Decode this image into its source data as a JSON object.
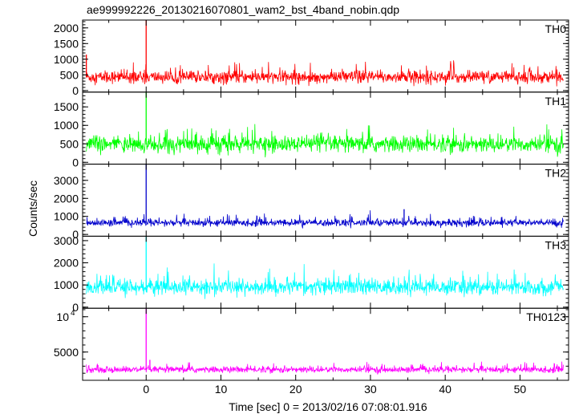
{
  "chart_data": {
    "type": "line",
    "title": "ae999992226_20130216070801_wam2_bst_4band_nobin.qdp",
    "xlabel": "Time [sec] 0 = 2013/02/16 07:08:01.916",
    "ylabel": "Counts/sec",
    "xlim": [
      -8.5,
      56.5
    ],
    "x_ticks": [
      0,
      10,
      20,
      30,
      40,
      50
    ],
    "grid": false,
    "panels": [
      {
        "name": "TH0",
        "color": "#ff0000",
        "ylim": [
          -50,
          2250
        ],
        "y_ticks": [
          {
            "v": 0,
            "label": "0"
          },
          {
            "v": 500,
            "label": "500"
          },
          {
            "v": 1000,
            "label": "1000"
          },
          {
            "v": 1500,
            "label": "1500"
          },
          {
            "v": 2000,
            "label": "2000"
          }
        ],
        "baseline": 430,
        "noise_sd": 180,
        "spikes": [
          {
            "t": -8.0,
            "v": 1150
          },
          {
            "t": 0.0,
            "v": 2250
          }
        ]
      },
      {
        "name": "TH1",
        "color": "#00ff00",
        "ylim": [
          -50,
          1900
        ],
        "y_ticks": [
          {
            "v": 0,
            "label": "0"
          },
          {
            "v": 500,
            "label": "500"
          },
          {
            "v": 1000,
            "label": "1000"
          },
          {
            "v": 1500,
            "label": "1500"
          }
        ],
        "baseline": 480,
        "noise_sd": 200,
        "spikes": [
          {
            "t": 0.0,
            "v": 1900
          }
        ]
      },
      {
        "name": "TH2",
        "color": "#0000cc",
        "ylim": [
          -100,
          3900
        ],
        "y_ticks": [
          {
            "v": 0,
            "label": "0"
          },
          {
            "v": 1000,
            "label": "1000"
          },
          {
            "v": 2000,
            "label": "2000"
          },
          {
            "v": 3000,
            "label": "3000"
          }
        ],
        "baseline": 640,
        "noise_sd": 180,
        "spikes": [
          {
            "t": 0.0,
            "v": 3900
          },
          {
            "t": 34.5,
            "v": 1400
          }
        ]
      },
      {
        "name": "TH3",
        "color": "#00ffff",
        "ylim": [
          -50,
          3200
        ],
        "y_ticks": [
          {
            "v": 0,
            "label": "0"
          },
          {
            "v": 1000,
            "label": "1000"
          },
          {
            "v": 2000,
            "label": "2000"
          },
          {
            "v": 3000,
            "label": "3000"
          }
        ],
        "baseline": 900,
        "noise_sd": 320,
        "spikes": [
          {
            "t": 0.0,
            "v": 3200
          }
        ]
      },
      {
        "name": "TH0123",
        "color": "#ff00ff",
        "ylim": [
          1000,
          11200
        ],
        "y_ticks": [
          {
            "v": 5000,
            "label": "5000"
          },
          {
            "v": 10000,
            "label": "10^4"
          }
        ],
        "baseline": 2500,
        "noise_sd": 400,
        "spikes": [
          {
            "t": 0.0,
            "v": 11200
          },
          {
            "t": 0.5,
            "v": 3900
          }
        ]
      }
    ]
  }
}
